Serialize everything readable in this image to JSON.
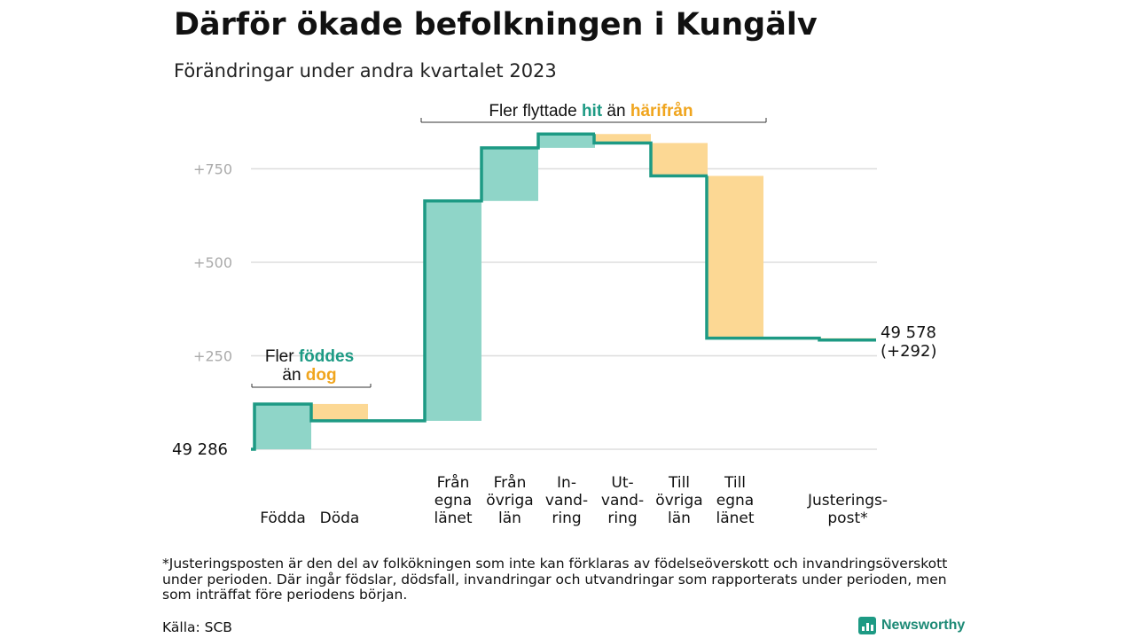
{
  "title": "Därför ökade befolkningen i Kungälv",
  "subtitle": "Förändringar under andra kvartalet 2023",
  "footnote": "*Justeringsposten är den del av folkökningen som inte kan förklaras av födelseöverskott och invandringsöverskott under perioden. Där ingår födslar, dödsfall, invandringar och utvandringar som rapporterats under perioden, men som inträffat före periodens början.",
  "source": "Källa: SCB",
  "brand": "Newsworthy",
  "colors": {
    "increase": "#8fd5c8",
    "decrease": "#fcd894",
    "line": "#1d9a84",
    "increase_text": "#1d9a84",
    "decrease_text": "#f0a51e",
    "grid": "#dddddd",
    "tick": "#aaaaaa"
  },
  "chart_data": {
    "type": "waterfall",
    "start_value_label": "49  286",
    "end_value_label": "49 578",
    "end_change_label": "(+292)",
    "y_ticks": [
      "+750",
      "+500",
      "+250"
    ],
    "y_tick_values": [
      750,
      500,
      250
    ],
    "ylim": [
      0,
      750
    ],
    "steps": [
      {
        "category": "Födda",
        "label_lines": [
          "Födda"
        ],
        "change": 121,
        "level_before": 0,
        "level_after": 121
      },
      {
        "category": "Döda",
        "label_lines": [
          "Döda"
        ],
        "change": -45,
        "level_before": 121,
        "level_after": 76
      },
      {
        "category": "Från egna länet",
        "label_lines": [
          "Från",
          "egna",
          "länet"
        ],
        "change": 588,
        "level_before": 76,
        "level_after": 664
      },
      {
        "category": "Från övriga län",
        "label_lines": [
          "Från",
          "övriga",
          "län"
        ],
        "change": 142,
        "level_before": 664,
        "level_after": 806
      },
      {
        "category": "In-vandring",
        "label_lines": [
          "In-",
          "vand-",
          "ring"
        ],
        "change": 37,
        "level_before": 806,
        "level_after": 843
      },
      {
        "category": "Ut-vandring",
        "label_lines": [
          "Ut-",
          "vand-",
          "ring"
        ],
        "change": -24,
        "level_before": 843,
        "level_after": 819
      },
      {
        "category": "Till övriga län",
        "label_lines": [
          "Till",
          "övriga",
          "län"
        ],
        "change": -88,
        "level_before": 819,
        "level_after": 731
      },
      {
        "category": "Till egna länet",
        "label_lines": [
          "Till",
          "egna",
          "länet"
        ],
        "change": -434,
        "level_before": 731,
        "level_after": 297
      },
      {
        "category": "Justeringspost*",
        "label_lines": [
          "Justerings-",
          "post*"
        ],
        "change": -5,
        "level_before": 297,
        "level_after": 292
      }
    ],
    "annotations": [
      {
        "parts": [
          [
            "Fler ",
            "plain"
          ],
          [
            "föddes",
            "increase"
          ]
        ],
        "parts2": [
          [
            "än ",
            "plain"
          ],
          [
            "dog",
            "decrease"
          ]
        ],
        "spans": [
          0,
          1
        ]
      },
      {
        "parts": [
          [
            "Fler flyttade ",
            "plain"
          ],
          [
            "hit",
            "increase"
          ],
          [
            " än ",
            "plain"
          ],
          [
            "härifrån",
            "decrease"
          ]
        ],
        "spans": [
          2,
          7
        ]
      }
    ]
  }
}
